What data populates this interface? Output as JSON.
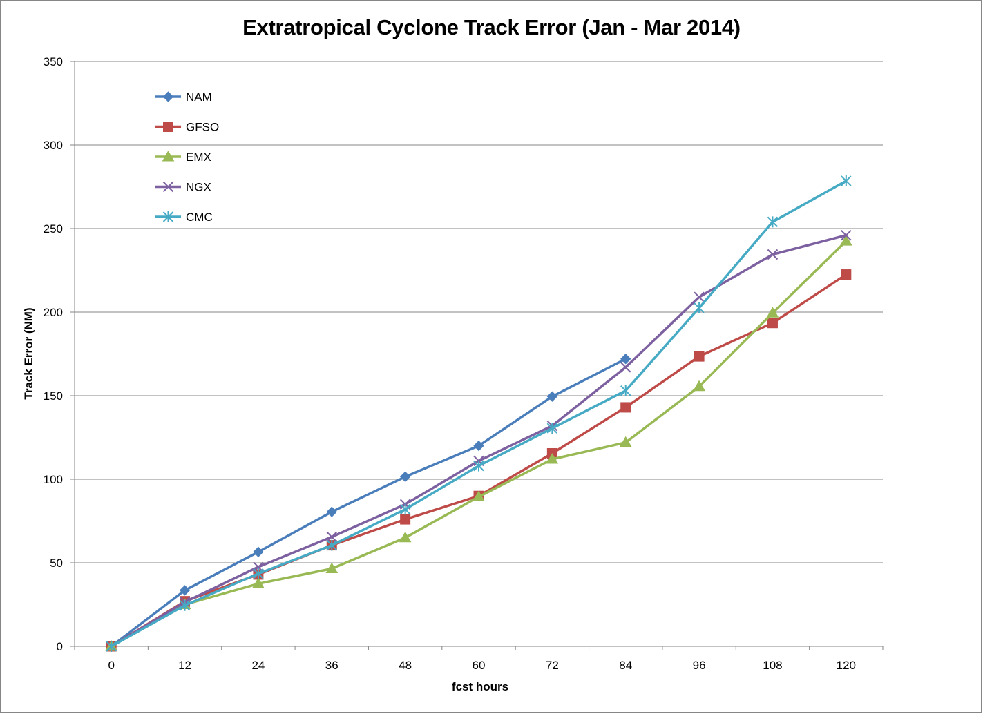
{
  "chart_data": {
    "type": "line",
    "title": "Extratropical Cyclone Track Error (Jan - Mar 2014)",
    "xlabel": "fcst hours",
    "ylabel": "Track Error  (NM)",
    "categories": [
      "0",
      "12",
      "24",
      "36",
      "48",
      "60",
      "72",
      "84",
      "96",
      "108",
      "120"
    ],
    "ylim": [
      0,
      350
    ],
    "yticks": [
      "0",
      "50",
      "100",
      "150",
      "200",
      "250",
      "300",
      "350"
    ],
    "grid": "horizontal major gridlines",
    "legend_position": "top-left inside plot area",
    "series": [
      {
        "name": "NAM",
        "color": "#4a7ebb",
        "marker": "diamond",
        "values": [
          0,
          33.5,
          56.5,
          80.5,
          101.5,
          120,
          149.5,
          172,
          null,
          null,
          null
        ]
      },
      {
        "name": "GFSO",
        "color": "#be4b48",
        "marker": "square",
        "values": [
          0,
          27,
          43,
          60.5,
          76,
          90,
          115.5,
          143,
          173.5,
          193.5,
          222.5
        ]
      },
      {
        "name": "EMX",
        "color": "#98b954",
        "marker": "triangle",
        "values": [
          0,
          25,
          37.5,
          46.5,
          65,
          89.5,
          112,
          122,
          155.5,
          199.5,
          242.5
        ]
      },
      {
        "name": "NGX",
        "color": "#7d60a0",
        "marker": "x",
        "values": [
          0,
          26.5,
          47.5,
          65.5,
          85,
          111,
          132,
          167,
          209,
          234.5,
          246
        ]
      },
      {
        "name": "CMC",
        "color": "#46aac5",
        "marker": "star",
        "values": [
          0,
          24.5,
          43.5,
          60.5,
          82,
          108,
          130.5,
          153,
          202.5,
          254,
          278.5
        ]
      }
    ]
  }
}
